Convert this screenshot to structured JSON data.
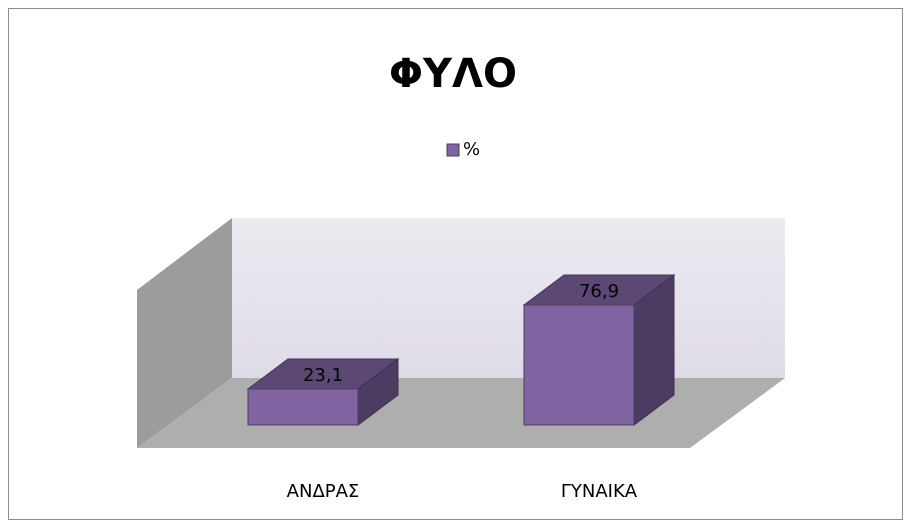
{
  "chart_data": {
    "type": "bar3d",
    "title": "ΦΥΛΟ",
    "categories": [
      "ΑΝΔΡΑΣ",
      "ΓΥΝΑΙΚΑ"
    ],
    "series": [
      {
        "name": "%",
        "color": "#8064a2",
        "values": [
          23.1,
          76.9
        ],
        "value_labels": [
          "23,1",
          "76,9"
        ]
      }
    ],
    "legend": "top"
  }
}
